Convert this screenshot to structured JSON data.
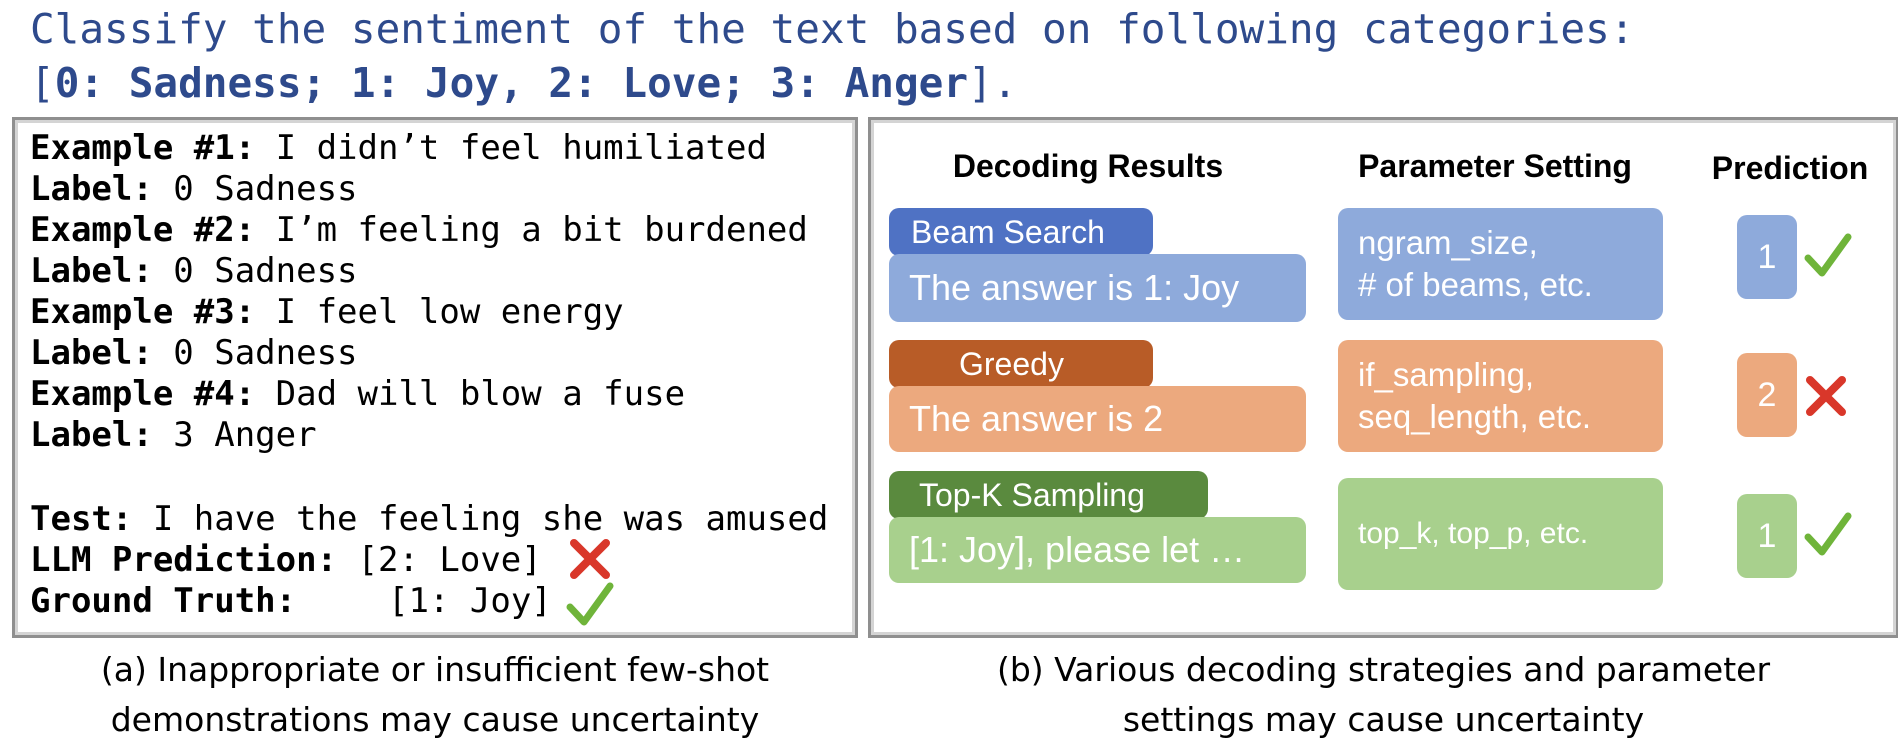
{
  "instruction": {
    "line1": "Classify the sentiment of the text based on following categories:",
    "open_bracket": "[",
    "categories": "0: Sadness; 1: Joy, 2: Love; 3: Anger",
    "close": "]."
  },
  "panel_a": {
    "examples": [
      {
        "example_label": "Example #1:",
        "text": " I didn’t feel humiliated",
        "label_key": "Label:",
        "label_value": " 0 Sadness"
      },
      {
        "example_label": "Example #2:",
        "text": " I’m feeling a bit burdened",
        "label_key": "Label:",
        "label_value": " 0 Sadness"
      },
      {
        "example_label": "Example #3:",
        "text": " I feel low energy",
        "label_key": "Label:",
        "label_value": " 0 Sadness"
      },
      {
        "example_label": "Example #4:",
        "text": " Dad will blow a fuse",
        "label_key": "Label:",
        "label_value": " 3 Anger"
      }
    ],
    "test_key": "Test:",
    "test_text": " I have the feeling she was amused",
    "prediction_key": "LLM Prediction:",
    "prediction_value": " [2: Love]",
    "truth_key": "Ground Truth:",
    "truth_value": "[1: Joy]",
    "caption_line1": "(a) Inappropriate or insufficient few-shot",
    "caption_line2": "demonstrations may cause uncertainty"
  },
  "panel_b": {
    "headers": {
      "decoding": "Decoding Results",
      "parameter": "Parameter Setting",
      "prediction": "Prediction"
    },
    "rows": [
      {
        "strategy": "Beam Search",
        "result": "The answer is 1: Joy",
        "param_line1": "ngram_size,",
        "param_line2": "# of beams, etc.",
        "prediction": "1",
        "correct": true
      },
      {
        "strategy": "Greedy",
        "result": "The answer is 2",
        "param_line1": "if_sampling,",
        "param_line2": "seq_length, etc.",
        "prediction": "2",
        "correct": false
      },
      {
        "strategy": "Top-K Sampling",
        "result": "[1: Joy], please let …",
        "param_line1": "top_k, top_p, etc.",
        "param_line2": "",
        "prediction": "1",
        "correct": true
      }
    ],
    "caption_line1": "(b) Various decoding strategies and parameter",
    "caption_line2": "settings may cause uncertainty"
  },
  "colors": {
    "instruction_text": "#2e4a8c",
    "beam_tab": "#4f72c4",
    "beam_light": "#8eaadb",
    "greedy_tab": "#b85c27",
    "greedy_light": "#eca97e",
    "topk_tab": "#5a8a3e",
    "topk_light": "#a8d08d",
    "check": "#6fb43a",
    "cross": "#d9372a"
  }
}
